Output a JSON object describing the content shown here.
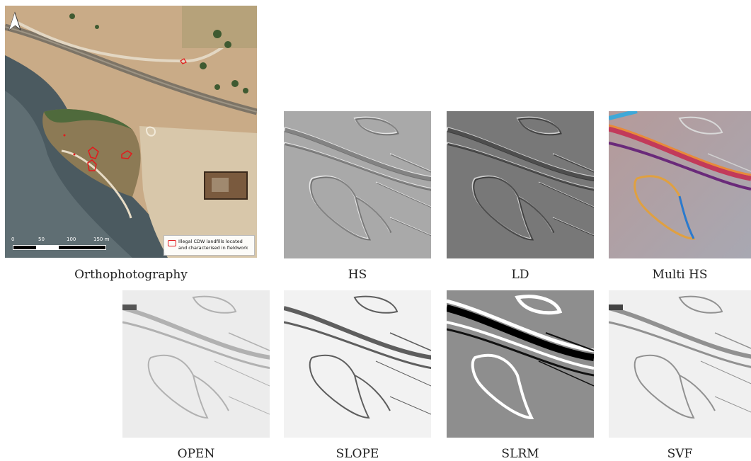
{
  "panels": {
    "orthophoto": {
      "caption": "Orthophotography",
      "scalebar": {
        "labels": [
          "0",
          "50",
          "100",
          "150 m"
        ]
      },
      "legend": {
        "line1": "Illegal CDW landfills located",
        "line2": "and characterised in fieldwork",
        "color": "#e31a1c"
      },
      "north_arrow_icon": "north-arrow-icon"
    },
    "hs": {
      "caption": "HS"
    },
    "ld": {
      "caption": "LD"
    },
    "multi_hs": {
      "caption": "Multi HS"
    },
    "open": {
      "caption": "OPEN"
    },
    "slope": {
      "caption": "SLOPE"
    },
    "slrm": {
      "caption": "SLRM"
    },
    "svf": {
      "caption": "SVF"
    }
  }
}
